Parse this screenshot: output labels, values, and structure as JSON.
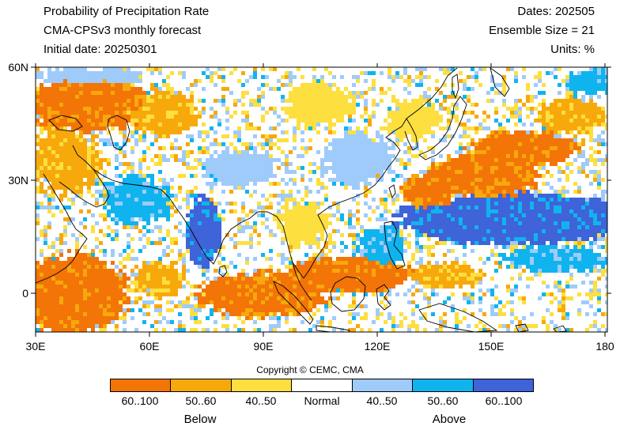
{
  "header": {
    "title": "Probability of Precipitation Rate",
    "model": "CMA-CPSv3 monthly forecast",
    "initial_date": "Initial date: 20250301",
    "dates": "Dates: 202505",
    "ensemble": "Ensemble Size = 21",
    "units": "Units: %"
  },
  "axes": {
    "lat_labels": [
      "60N",
      "30N",
      "0"
    ],
    "lon_labels": [
      "30E",
      "60E",
      "90E",
      "120E",
      "150E",
      "180"
    ]
  },
  "copyright": "Copyright © CEMC, CMA",
  "legend": {
    "categories": [
      {
        "label": "60..100",
        "color": "#f37407"
      },
      {
        "label": "50..60",
        "color": "#f7a80b"
      },
      {
        "label": "40..50",
        "color": "#fddf3f"
      },
      {
        "label": "Normal",
        "color": "#ffffff"
      },
      {
        "label": "40..50",
        "color": "#9fcbfa"
      },
      {
        "label": "50..60",
        "color": "#0fb4ef"
      },
      {
        "label": "60..100",
        "color": "#3f63d8"
      }
    ],
    "below_label": "Below",
    "above_label": "Above"
  }
}
